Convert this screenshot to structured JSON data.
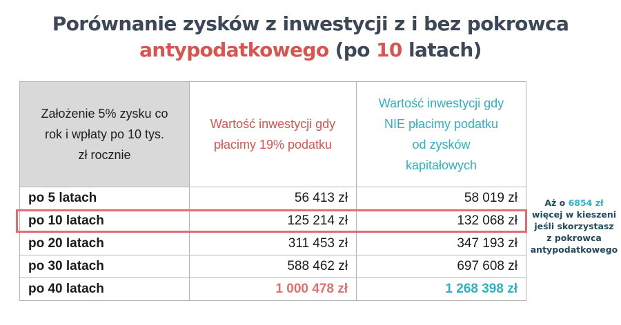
{
  "title": {
    "line1": "Porównanie zysków z inwestycji z i bez pokrowca",
    "line2_accent": "antypodatkowego",
    "line2_open": " (po ",
    "line2_number": "10",
    "line2_close": " latach)",
    "colors": {
      "main": "#3d4857",
      "accent": "#d9534f"
    }
  },
  "chart_data": {
    "type": "table",
    "title": "Porównanie zysków z inwestycji z i bez pokrowca antypodatkowego (po 10 latach)",
    "columns": [
      "Założenie 5% zysku co rok i wpłaty po 10 tys. zł rocznie",
      "Wartość inwestycji gdy płacimy 19% podatku",
      "Wartość inwestycji gdy NIE płacimy podatku od zysków kapitałowych"
    ],
    "rows": [
      {
        "label": "po 5 latach",
        "with_tax": "56 413 zł",
        "without_tax": "58 019 zł"
      },
      {
        "label": "po 10 latach",
        "with_tax": "125 214 zł",
        "without_tax": "132 068 zł"
      },
      {
        "label": "po 20 latach",
        "with_tax": "311 453 zł",
        "without_tax": "347 193 zł"
      },
      {
        "label": "po 30 latach",
        "with_tax": "588 462 zł",
        "without_tax": "697 608 zł"
      },
      {
        "label": "po 40 latach",
        "with_tax": "1 000 478 zł",
        "without_tax": "1 268 398 zł"
      }
    ],
    "series": [
      {
        "name": "Wartość inwestycji gdy płacimy 19% podatku",
        "values": [
          56413,
          125214,
          311453,
          588462,
          1000478
        ]
      },
      {
        "name": "Wartość inwestycji gdy NIE płacimy podatku od zysków kapitałowych",
        "values": [
          58019,
          132068,
          347193,
          697608,
          1268398
        ]
      }
    ],
    "categories": [
      "po 5 latach",
      "po 10 latach",
      "po 20 latach",
      "po 30 latach",
      "po 40 latach"
    ],
    "highlighted_row": "po 10 latach",
    "colors": {
      "with_tax": "#d9534f",
      "without_tax": "#2fb1c5",
      "highlight_border": "#e06c70"
    }
  },
  "header": {
    "col1_lines": [
      "Założenie 5% zysku co",
      "rok i wpłaty po 10 tys.",
      "zł rocznie"
    ],
    "col2_lines": [
      "Wartość inwestycji gdy",
      "płacimy 19% podatku"
    ],
    "col3_lines": [
      "Wartość inwestycji gdy",
      "NIE płacimy podatku",
      "od zysków",
      "kapitałowych"
    ]
  },
  "side_note": {
    "prefix": "Aż o ",
    "amount": "6854 zł",
    "line2": "więcej w kieszeni",
    "line3": "jeśli skorzystasz",
    "line4": "z pokrowca",
    "line5": "antypodatkowego"
  }
}
